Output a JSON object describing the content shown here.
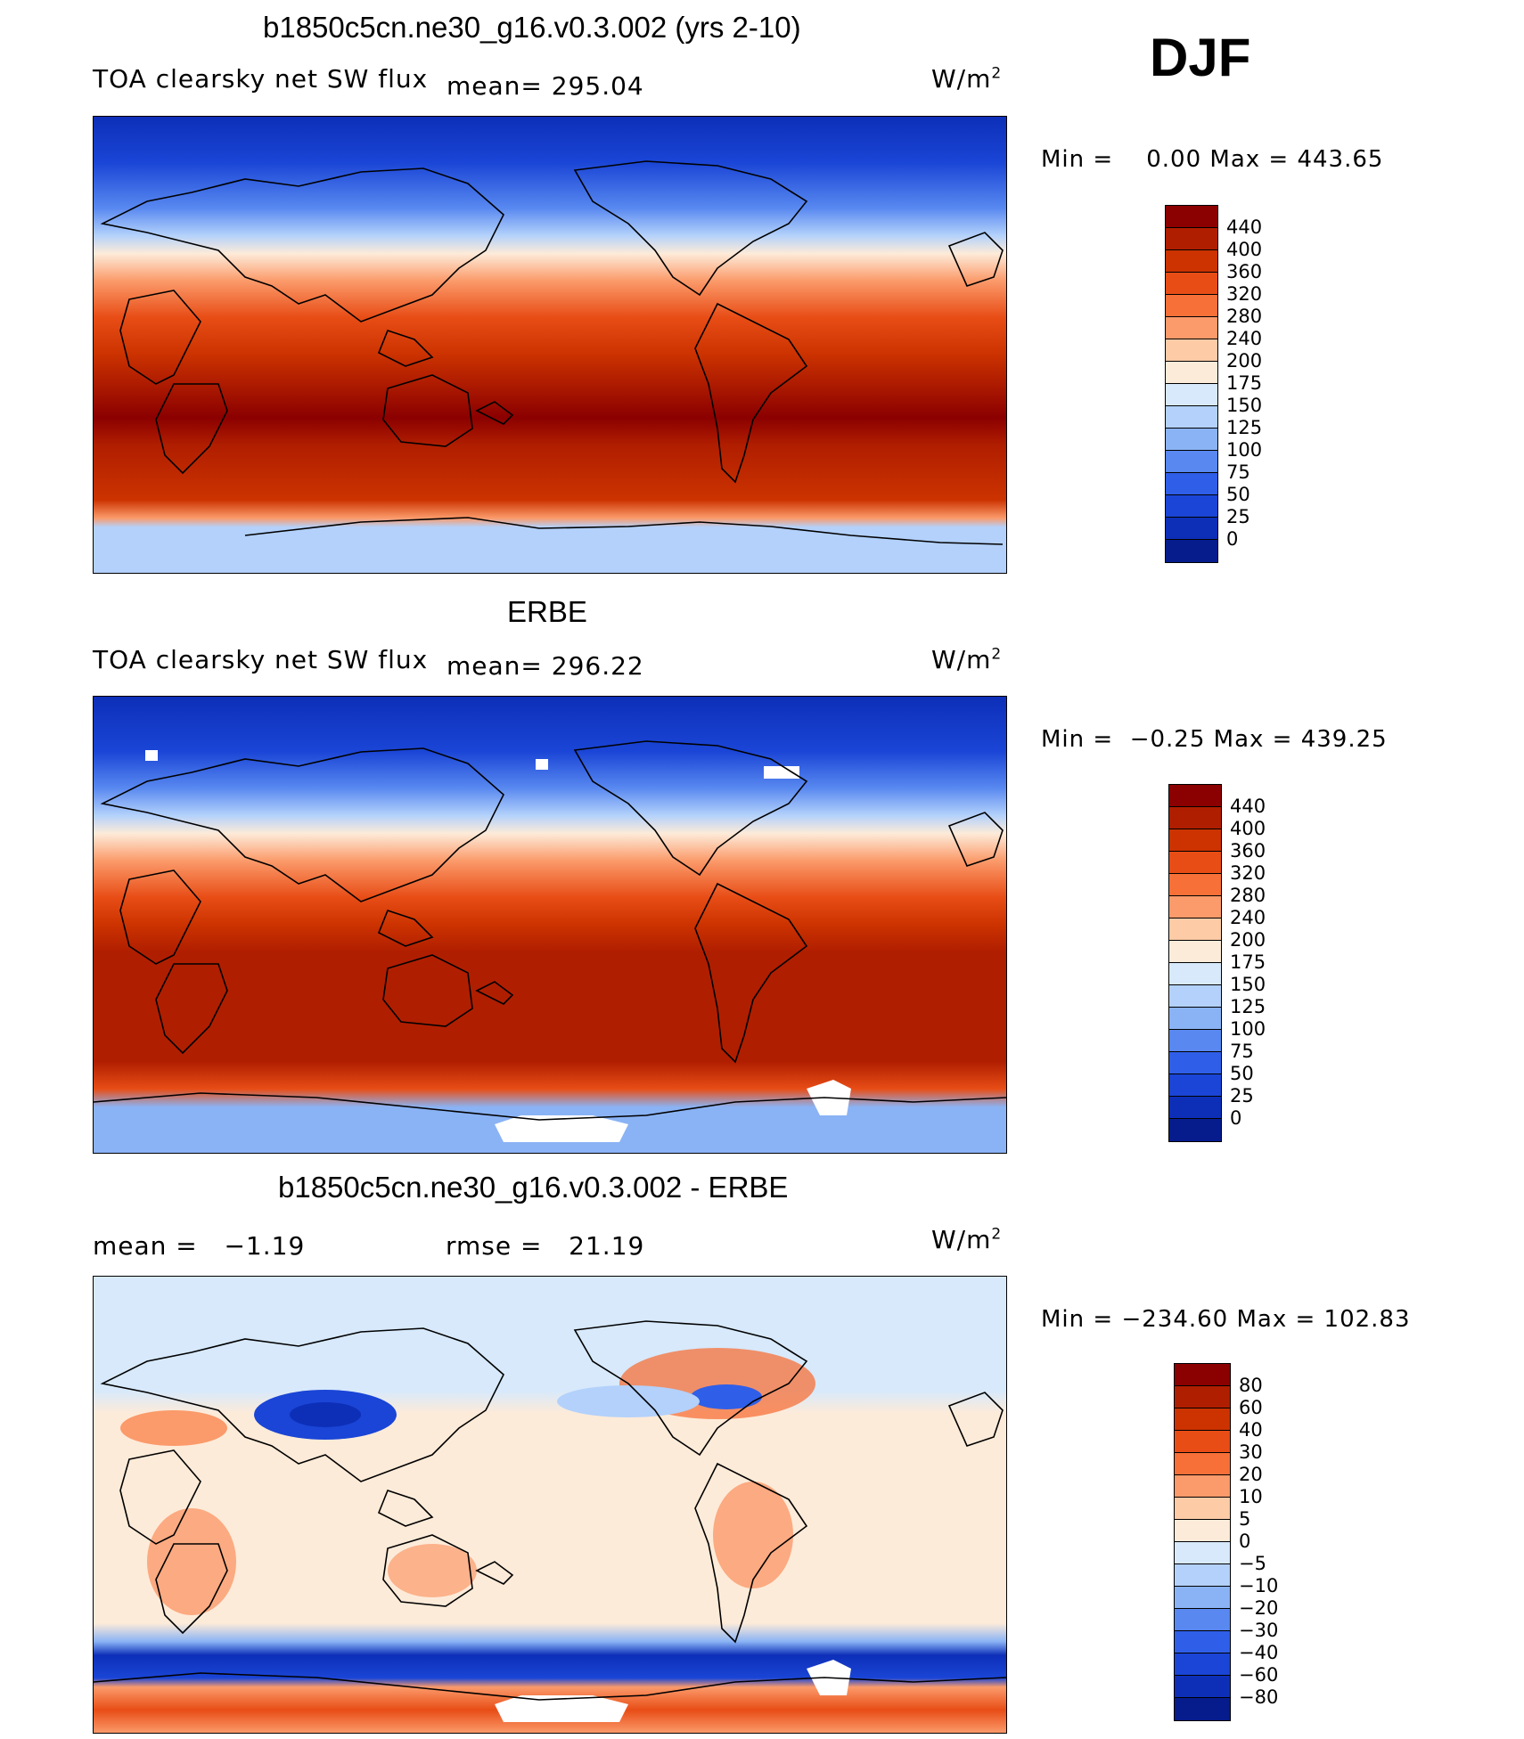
{
  "season": "DJF",
  "units": "W/m",
  "units_exp": "2",
  "panels": [
    {
      "title": "b1850c5cn.ne30_g16.v0.3.002 (yrs 2-10)",
      "variable": "TOA clearsky net SW flux",
      "mean_text": "mean= 295.04",
      "minmax": "Min =    0.00 Max = 443.65",
      "colorbar": {
        "colors": [
          "#8b0000",
          "#b01e00",
          "#cc3300",
          "#e84d16",
          "#f77038",
          "#fb9a6a",
          "#fdcba6",
          "#fdebd9",
          "#d7e9fb",
          "#b3d1fb",
          "#8ab3f5",
          "#5888f0",
          "#2f5fe8",
          "#1a45d6",
          "#0d2fb8",
          "#061c8c"
        ],
        "labels": [
          "440",
          "400",
          "360",
          "320",
          "280",
          "240",
          "200",
          "175",
          "150",
          "125",
          "100",
          "75",
          "50",
          "25",
          "0"
        ]
      }
    },
    {
      "title": "ERBE",
      "variable": "TOA clearsky net SW flux",
      "mean_text": "mean= 296.22",
      "minmax": "Min =  −0.25 Max = 439.25",
      "colorbar": {
        "colors": [
          "#8b0000",
          "#b01e00",
          "#cc3300",
          "#e84d16",
          "#f77038",
          "#fb9a6a",
          "#fdcba6",
          "#fdebd9",
          "#d7e9fb",
          "#b3d1fb",
          "#8ab3f5",
          "#5888f0",
          "#2f5fe8",
          "#1a45d6",
          "#0d2fb8",
          "#061c8c"
        ],
        "labels": [
          "440",
          "400",
          "360",
          "320",
          "280",
          "240",
          "200",
          "175",
          "150",
          "125",
          "100",
          "75",
          "50",
          "25",
          "0"
        ]
      }
    },
    {
      "title": "b1850c5cn.ne30_g16.v0.3.002 - ERBE",
      "mean_text": "mean =   −1.19",
      "rmse_text": "rmse =   21.19",
      "minmax": "Min = −234.60 Max = 102.83",
      "colorbar": {
        "colors": [
          "#8b0000",
          "#b01e00",
          "#cc3300",
          "#e84d16",
          "#f77038",
          "#fb9a6a",
          "#fdcba6",
          "#fdebd9",
          "#d7e9fb",
          "#b3d1fb",
          "#8ab3f5",
          "#5888f0",
          "#2f5fe8",
          "#1a45d6",
          "#0d2fb8",
          "#061c8c"
        ],
        "labels": [
          "80",
          "60",
          "40",
          "30",
          "20",
          "10",
          "5",
          "0",
          "−5",
          "−10",
          "−20",
          "−30",
          "−40",
          "−60",
          "−80"
        ]
      }
    }
  ]
}
